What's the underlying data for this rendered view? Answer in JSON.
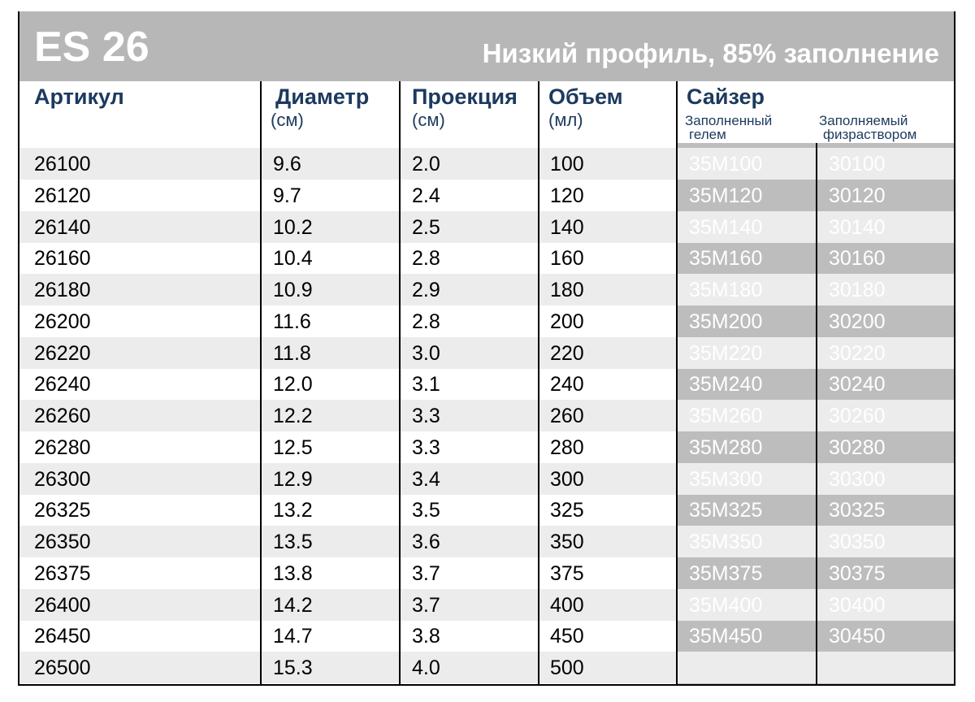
{
  "header": {
    "code": "ES 26",
    "subtitle": "Низкий профиль, 85% заполнение"
  },
  "columns": {
    "article": "Артикул",
    "diameter": "Диаметр",
    "diameter_unit": "(см)",
    "projection": "Проекция",
    "projection_unit": "(см)",
    "volume": "Объем",
    "volume_unit": "(мл)",
    "sizer": "Сайзер",
    "sizer_gel_line1": "Заполненный",
    "sizer_gel_line2": "гелем",
    "sizer_saline_line1": "Заполняемый",
    "sizer_saline_line2": "физраствором"
  },
  "colors": {
    "banner": "#b7b7b7",
    "header_text": "#1c3a5e",
    "sizer_background": "#bdbdbd",
    "row_stripe": "#ececec"
  },
  "rows": [
    {
      "article": "26100",
      "diameter": "9.6",
      "projection": "2.0",
      "volume": "100",
      "sizer_gel": "35M100",
      "sizer_saline": "30100"
    },
    {
      "article": "26120",
      "diameter": "9.7",
      "projection": "2.4",
      "volume": "120",
      "sizer_gel": "35M120",
      "sizer_saline": "30120"
    },
    {
      "article": "26140",
      "diameter": "10.2",
      "projection": "2.5",
      "volume": "140",
      "sizer_gel": "35M140",
      "sizer_saline": "30140"
    },
    {
      "article": "26160",
      "diameter": "10.4",
      "projection": "2.8",
      "volume": "160",
      "sizer_gel": "35M160",
      "sizer_saline": "30160"
    },
    {
      "article": "26180",
      "diameter": "10.9",
      "projection": "2.9",
      "volume": "180",
      "sizer_gel": "35M180",
      "sizer_saline": "30180"
    },
    {
      "article": "26200",
      "diameter": "11.6",
      "projection": "2.8",
      "volume": "200",
      "sizer_gel": "35M200",
      "sizer_saline": "30200"
    },
    {
      "article": "26220",
      "diameter": "11.8",
      "projection": "3.0",
      "volume": "220",
      "sizer_gel": "35M220",
      "sizer_saline": "30220"
    },
    {
      "article": "26240",
      "diameter": "12.0",
      "projection": "3.1",
      "volume": "240",
      "sizer_gel": "35M240",
      "sizer_saline": "30240"
    },
    {
      "article": "26260",
      "diameter": "12.2",
      "projection": "3.3",
      "volume": "260",
      "sizer_gel": "35M260",
      "sizer_saline": "30260"
    },
    {
      "article": "26280",
      "diameter": "12.5",
      "projection": "3.3",
      "volume": "280",
      "sizer_gel": "35M280",
      "sizer_saline": "30280"
    },
    {
      "article": "26300",
      "diameter": "12.9",
      "projection": "3.4",
      "volume": "300",
      "sizer_gel": "35M300",
      "sizer_saline": "30300"
    },
    {
      "article": "26325",
      "diameter": "13.2",
      "projection": "3.5",
      "volume": "325",
      "sizer_gel": "35M325",
      "sizer_saline": "30325"
    },
    {
      "article": "26350",
      "diameter": "13.5",
      "projection": "3.6",
      "volume": "350",
      "sizer_gel": "35M350",
      "sizer_saline": "30350"
    },
    {
      "article": "26375",
      "diameter": "13.8",
      "projection": "3.7",
      "volume": "375",
      "sizer_gel": "35M375",
      "sizer_saline": "30375"
    },
    {
      "article": "26400",
      "diameter": "14.2",
      "projection": "3.7",
      "volume": "400",
      "sizer_gel": "35M400",
      "sizer_saline": "30400"
    },
    {
      "article": "26450",
      "diameter": "14.7",
      "projection": "3.8",
      "volume": "450",
      "sizer_gel": "35M450",
      "sizer_saline": "30450"
    },
    {
      "article": "26500",
      "diameter": "15.3",
      "projection": "4.0",
      "volume": "500",
      "sizer_gel": "",
      "sizer_saline": ""
    }
  ]
}
